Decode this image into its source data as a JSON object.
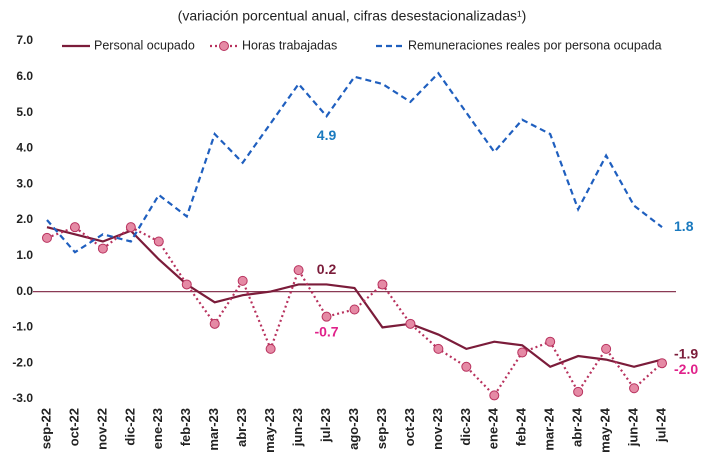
{
  "chart_data": {
    "type": "line",
    "title": "(variación porcentual anual, cifras desestacionalizadas¹)",
    "categories": [
      "sep-22",
      "oct-22",
      "nov-22",
      "dic-22",
      "ene-23",
      "feb-23",
      "mar-23",
      "abr-23",
      "may-23",
      "jun-23",
      "jul-23",
      "ago-23",
      "sep-23",
      "oct-23",
      "nov-23",
      "dic-23",
      "ene-24",
      "feb-24",
      "mar-24",
      "abr-24",
      "may-24",
      "jun-24",
      "jul-24"
    ],
    "series": [
      {
        "name": "Personal ocupado",
        "color": "#7b1c3a",
        "style": "solid",
        "values": [
          1.8,
          1.6,
          1.4,
          1.7,
          0.9,
          0.2,
          -0.3,
          -0.1,
          0.0,
          0.2,
          0.2,
          0.1,
          -1.0,
          -0.9,
          -1.2,
          -1.6,
          -1.4,
          -1.5,
          -2.1,
          -1.8,
          -1.9,
          -2.1,
          -1.9
        ],
        "value_labels": [
          null,
          null,
          null,
          null,
          null,
          null,
          null,
          null,
          null,
          null,
          "0.2",
          null,
          null,
          null,
          null,
          null,
          null,
          null,
          null,
          null,
          null,
          null,
          "-1.9"
        ],
        "label_color": "#7b1c3a"
      },
      {
        "name": "Horas trabajadas",
        "color": "#b8325e",
        "marker_fill": "#e58aa5",
        "style": "dotted",
        "marker": "circle",
        "values": [
          1.5,
          1.8,
          1.2,
          1.8,
          1.4,
          0.2,
          -0.9,
          0.3,
          -1.6,
          0.6,
          -0.7,
          -0.5,
          0.2,
          -0.9,
          -1.6,
          -2.1,
          -2.9,
          -1.7,
          -1.4,
          -2.8,
          -1.6,
          -2.7,
          -2.0
        ],
        "value_labels": [
          null,
          null,
          null,
          null,
          null,
          null,
          null,
          null,
          null,
          null,
          "-0.7",
          null,
          null,
          null,
          null,
          null,
          null,
          null,
          null,
          null,
          null,
          null,
          "-2.0"
        ],
        "label_color": "#e0218a"
      },
      {
        "name": "Remuneraciones reales por persona ocupada",
        "color": "#1f5fbf",
        "style": "dashed",
        "values": [
          2.0,
          1.1,
          1.6,
          1.4,
          2.7,
          2.1,
          4.4,
          3.6,
          4.7,
          5.8,
          4.9,
          6.0,
          5.8,
          5.3,
          6.1,
          5.0,
          3.9,
          4.8,
          4.4,
          2.3,
          3.8,
          2.4,
          1.8
        ],
        "value_labels": [
          null,
          null,
          null,
          null,
          null,
          null,
          null,
          null,
          null,
          null,
          "4.9",
          null,
          null,
          null,
          null,
          null,
          null,
          null,
          null,
          null,
          null,
          null,
          "1.8"
        ],
        "label_color": "#1a7abf"
      }
    ],
    "ylim": [
      -3,
      7
    ],
    "yticks": [
      {
        "value": -3,
        "label": "-3.0"
      },
      {
        "value": -2,
        "label": "-2.0"
      },
      {
        "value": -1,
        "label": "-1.0"
      },
      {
        "value": 0,
        "label": "0.0"
      },
      {
        "value": 1,
        "label": "1.0"
      },
      {
        "value": 2,
        "label": "2.0"
      },
      {
        "value": 3,
        "label": "3.0"
      },
      {
        "value": 4,
        "label": "4.0"
      },
      {
        "value": 5,
        "label": "5.0"
      },
      {
        "value": 6,
        "label": "6.0"
      },
      {
        "value": 7,
        "label": "7.0"
      }
    ],
    "grid": false,
    "legend": "top"
  }
}
